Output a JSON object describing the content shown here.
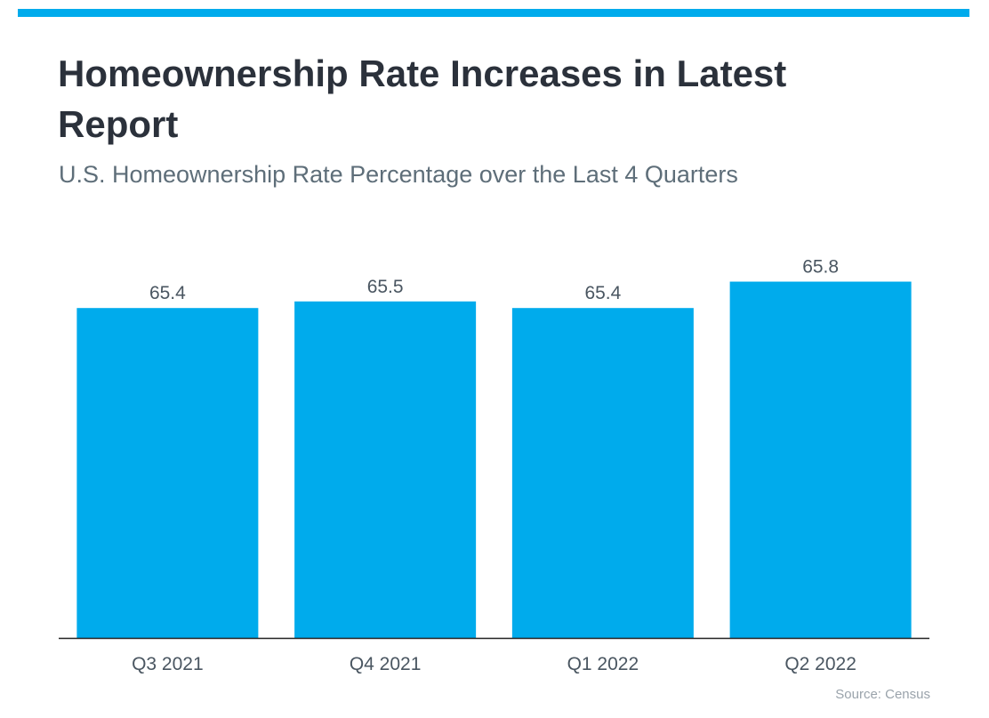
{
  "header": {
    "title": "Homeownership Rate Increases in Latest Report",
    "subtitle": "U.S. Homeownership Rate Percentage over the Last 4 Quarters"
  },
  "source": "Source: Census",
  "colors": {
    "accent": "#00abec",
    "bar": "#00abec",
    "title": "#2b313b",
    "subtitle": "#5e6e79",
    "labels": "#4a5661",
    "axis": "#222222"
  },
  "chart_data": {
    "type": "bar",
    "categories": [
      "Q3 2021",
      "Q4 2021",
      "Q1 2022",
      "Q2 2022"
    ],
    "values": [
      65.4,
      65.5,
      65.4,
      65.8
    ],
    "data_labels": [
      "65.4",
      "65.5",
      "65.4",
      "65.8"
    ],
    "title": "",
    "xlabel": "",
    "ylabel": "",
    "ylim": [
      60.4,
      66.05
    ],
    "grid": false,
    "legend": "none"
  }
}
